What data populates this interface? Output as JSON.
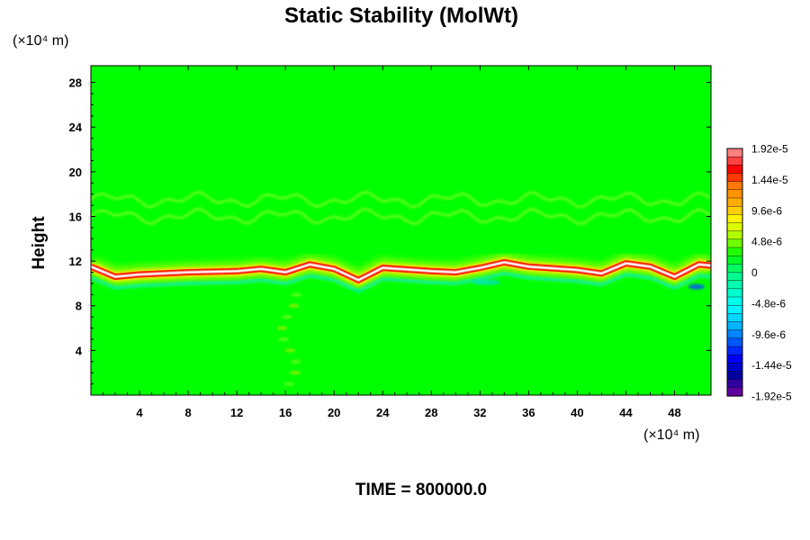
{
  "chart_data": {
    "type": "heatmap",
    "title": "Static Stability (MolWt)",
    "xlabel": "",
    "ylabel": "Height",
    "x_units": "(×10⁴ m)",
    "y_units": "(×10⁴ m)",
    "xlim": [
      0,
      51
    ],
    "ylim": [
      0,
      29.5
    ],
    "x_ticks": [
      4,
      8,
      12,
      16,
      20,
      24,
      28,
      32,
      36,
      40,
      44,
      48
    ],
    "y_ticks": [
      4,
      8,
      12,
      16,
      20,
      24,
      28
    ],
    "x_tick_labels": [
      "4",
      "8",
      "12",
      "16",
      "20",
      "24",
      "28",
      "32",
      "36",
      "40",
      "44",
      "48"
    ],
    "y_tick_labels": [
      "4",
      "8",
      "12",
      "16",
      "20",
      "24",
      "28"
    ],
    "colorbar": {
      "range": [
        -1.92e-05,
        1.92e-05
      ],
      "tick_values": [
        1.92e-05,
        1.44e-05,
        9.6e-06,
        4.8e-06,
        0,
        -4.8e-06,
        -9.6e-06,
        -1.44e-05,
        -1.92e-05
      ],
      "tick_labels": [
        "1.92e-5",
        "1.44e-5",
        "9.6e-6",
        "4.8e-6",
        "0",
        "-4.8e-6",
        "-9.6e-6",
        "-1.44e-5",
        "-1.92e-5"
      ],
      "colors": [
        "#ff8080",
        "#ff0000",
        "#ff8000",
        "#ffb000",
        "#ffff00",
        "#a0ff00",
        "#00ff00",
        "#00ff80",
        "#00ffc0",
        "#00ffff",
        "#00c0ff",
        "#0060ff",
        "#0000ff",
        "#0000a0",
        "#6000a0"
      ]
    },
    "features": {
      "background_value": 0,
      "tropopause_band": {
        "x": [
          0,
          2,
          4,
          8,
          12,
          14,
          16,
          18,
          20,
          22,
          24,
          28,
          30,
          32,
          34,
          36,
          40,
          42,
          44,
          46,
          48,
          50,
          51
        ],
        "height": [
          11.5,
          10.6,
          10.8,
          11.0,
          11.1,
          11.3,
          11.0,
          11.7,
          11.3,
          10.3,
          11.4,
          11.1,
          11.0,
          11.4,
          11.9,
          11.5,
          11.2,
          10.9,
          11.8,
          11.5,
          10.6,
          11.7,
          11.6
        ],
        "peak_value": 1.92e-05
      },
      "weak_layers_height": [
        16,
        17.5
      ]
    },
    "grid": false,
    "legend": "colorbar-right"
  },
  "footer": {
    "time_label": "TIME = 800000.0"
  }
}
